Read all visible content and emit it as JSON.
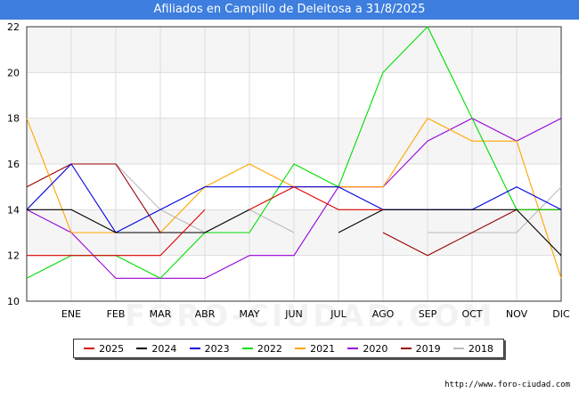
{
  "page": {
    "title": "Afiliados en Campillo de Deleitosa a 31/8/2025",
    "footer_url": "http://www.foro-ciudad.com",
    "watermark": "FORO-CIUDAD.COM",
    "title_bar_color": "#3d7ede"
  },
  "chart_data": {
    "type": "line",
    "title": "Afiliados en Campillo de Deleitosa a 31/8/2025",
    "xlabel": "",
    "ylabel": "",
    "categories": [
      "",
      "ENE",
      "FEB",
      "MAR",
      "ABR",
      "MAY",
      "JUN",
      "JUL",
      "AGO",
      "SEP",
      "OCT",
      "NOV",
      "DIC"
    ],
    "ylim": [
      10,
      22
    ],
    "yticks": [
      10,
      12,
      14,
      16,
      18,
      20,
      22
    ],
    "grid": true,
    "legend_position": "bottom",
    "series": [
      {
        "name": "2025",
        "color": "#dd0000",
        "values": [
          12,
          12,
          12,
          12,
          14,
          null,
          null,
          null,
          null,
          null,
          null,
          null,
          null
        ]
      },
      {
        "name": "2025",
        "color": "#dd0000",
        "values": [
          null,
          null,
          null,
          null,
          null,
          14,
          15,
          14,
          14,
          null,
          null,
          null,
          null
        ]
      },
      {
        "name": "2024",
        "color": "#000000",
        "values": [
          14,
          14,
          13,
          13,
          13,
          14,
          null,
          13,
          14,
          14,
          14,
          14,
          12
        ]
      },
      {
        "name": "2023",
        "color": "#0000dd",
        "values": [
          14,
          16,
          13,
          14,
          15,
          15,
          15,
          15,
          14,
          14,
          14,
          15,
          14
        ]
      },
      {
        "name": "2022",
        "color": "#00dd00",
        "values": [
          11,
          12,
          12,
          11,
          13,
          13,
          16,
          15,
          20,
          22,
          18,
          14,
          14
        ]
      },
      {
        "name": "2021",
        "color": "#ffa500",
        "values": [
          18,
          13,
          13,
          13,
          15,
          16,
          15,
          15,
          15,
          18,
          17,
          17,
          11
        ]
      },
      {
        "name": "2020",
        "color": "#9900dd",
        "values": [
          14,
          13,
          11,
          11,
          11,
          12,
          12,
          15,
          15,
          17,
          18,
          17,
          18
        ]
      },
      {
        "name": "2019",
        "color": "#990000",
        "values": [
          15,
          16,
          16,
          13,
          13,
          null,
          null,
          null,
          13,
          12,
          13,
          14,
          14
        ]
      },
      {
        "name": "2018",
        "color": "#bbbbbb",
        "values": [
          14,
          16,
          16,
          14,
          13,
          14,
          13,
          null,
          null,
          13,
          13,
          13,
          15
        ]
      }
    ],
    "legend": [
      {
        "name": "2025",
        "color": "#dd0000"
      },
      {
        "name": "2024",
        "color": "#000000"
      },
      {
        "name": "2023",
        "color": "#0000dd"
      },
      {
        "name": "2022",
        "color": "#00dd00"
      },
      {
        "name": "2021",
        "color": "#ffa500"
      },
      {
        "name": "2020",
        "color": "#9900dd"
      },
      {
        "name": "2019",
        "color": "#990000"
      },
      {
        "name": "2018",
        "color": "#bbbbbb"
      }
    ]
  }
}
